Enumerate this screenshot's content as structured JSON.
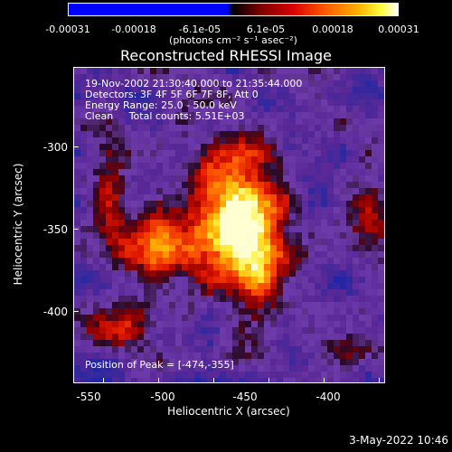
{
  "colorbar": {
    "ticks": [
      "-0.00031",
      "-0.00018",
      "-6.1e-05",
      "6.1e-05",
      "0.00018",
      "0.00031"
    ],
    "unit": "(photons cm⁻² s⁻¹ asec⁻²)"
  },
  "title": "Reconstructed RHESSI Image",
  "annotations": {
    "time": "19-Nov-2002 21:30:40.000 to 21:35:44.000",
    "detectors": "Detectors: 3F 4F 5F 6F 7F 8F, Att 0",
    "energy": "Energy Range: 25.0 - 50.0 keV",
    "clean": "Clean     Total counts: 5.51E+03",
    "peak": "Position of Peak = [-474,-355]"
  },
  "axes": {
    "xlabel": "Heliocentric X (arcsec)",
    "ylabel": "Heliocentric Y (arcsec)",
    "xticks": [
      "-550",
      "-500",
      "-450",
      "-400"
    ],
    "yticks": [
      "-300",
      "-350",
      "-400"
    ]
  },
  "footer": "3-May-2022 10:46",
  "colors": {
    "background": "#000000",
    "low": "#0000ff",
    "mid": "#5a2b8f",
    "high": "#ffff40"
  }
}
